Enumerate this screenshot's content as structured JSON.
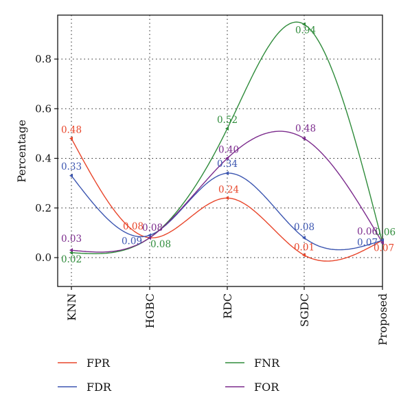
{
  "chart_data": {
    "type": "line",
    "title": "",
    "xlabel": "",
    "ylabel": "Percentage",
    "categories": [
      "KNN",
      "HGBC",
      "RDC",
      "SGDC",
      "Proposed"
    ],
    "ylim": [
      -0.12,
      1.0
    ],
    "yticks": [
      0.0,
      0.2,
      0.4,
      0.6,
      0.8
    ],
    "ytick_labels": [
      "0.0",
      "0.2",
      "0.4",
      "0.6",
      "0.8"
    ],
    "grid": true,
    "legend_position": "bottom",
    "smooth": true,
    "series": [
      {
        "name": "FPR",
        "color": "#e8452a",
        "values": [
          0.48,
          0.08,
          0.24,
          0.01,
          0.07
        ],
        "labels": [
          "0.48",
          "0.08",
          "0.24",
          "0.01",
          "0.07"
        ]
      },
      {
        "name": "FDR",
        "color": "#3b55b0",
        "values": [
          0.33,
          0.09,
          0.34,
          0.08,
          0.07
        ],
        "labels": [
          "0.33",
          "0.09",
          "0.34",
          "0.08",
          "0.07"
        ]
      },
      {
        "name": "FNR",
        "color": "#2e8b3a",
        "values": [
          0.02,
          0.08,
          0.52,
          0.94,
          0.06
        ],
        "labels": [
          "0.02",
          "0.08",
          "0.52",
          "0.94",
          "0.06"
        ]
      },
      {
        "name": "FOR",
        "color": "#7b2a8c",
        "values": [
          0.03,
          0.08,
          0.4,
          0.48,
          0.06
        ],
        "labels": [
          "0.03",
          "0.08",
          "0.40",
          "0.48",
          "0.06"
        ]
      }
    ]
  }
}
